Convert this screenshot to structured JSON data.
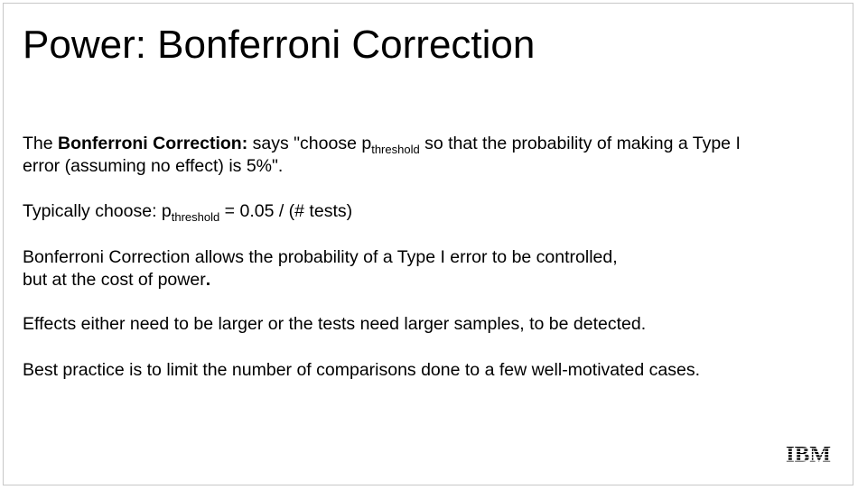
{
  "slide": {
    "title": "Power: Bonferroni Correction",
    "p1": {
      "prefix": "The ",
      "bold": "Bonferroni Correction:",
      "before_sub": " says \"choose p",
      "sub": "threshold",
      "after_sub": " so that the probability of making a Type I",
      "line2": "error (assuming no effect) is 5%\"."
    },
    "p2": {
      "before_sub": "Typically choose: p",
      "sub": "threshold",
      "after_sub": " = 0.05 / (# tests)"
    },
    "p3": {
      "line1": "Bonferroni Correction allows the probability of a Type I error to be controlled,",
      "line2_text": "but at the cost of power",
      "line2_bold": "."
    },
    "p4": "Effects either need to be larger or the tests need larger samples, to be detected.",
    "p5": "Best practice is to limit the number of comparisons done to a few well-motivated cases.",
    "logo": {
      "text": "IBM",
      "color": "#000000"
    }
  }
}
